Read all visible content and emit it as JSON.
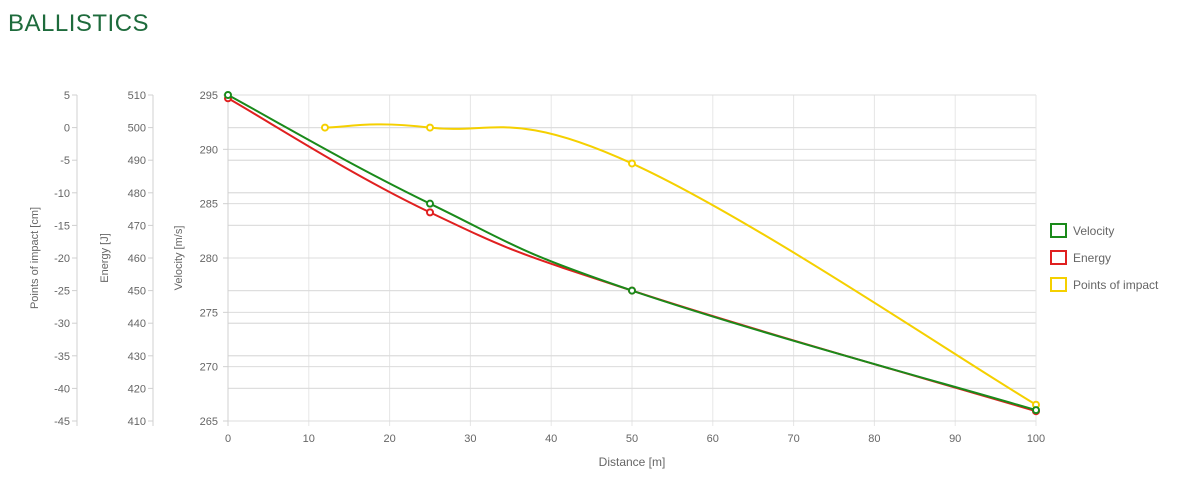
{
  "page": {
    "title": "BALLISTICS",
    "title_color": "#1e6b3c"
  },
  "chart_data": {
    "type": "line",
    "xlabel": "Distance [m]",
    "xlim": [
      0,
      100
    ],
    "xticks": [
      0,
      10,
      20,
      30,
      40,
      50,
      60,
      70,
      80,
      90,
      100
    ],
    "grid": true,
    "legend_position": "right",
    "axes": [
      {
        "id": "poi",
        "label": "Points of impact [cm]",
        "ylim": [
          -45,
          5
        ],
        "ticks": [
          5,
          0,
          -5,
          -10,
          -15,
          -20,
          -25,
          -30,
          -35,
          -40,
          -45
        ]
      },
      {
        "id": "energy",
        "label": "Energy [J]",
        "ylim": [
          410,
          510
        ],
        "ticks": [
          510,
          500,
          490,
          480,
          470,
          460,
          450,
          440,
          430,
          420,
          410
        ]
      },
      {
        "id": "velocity",
        "label": "Velocity [m/s]",
        "ylim": [
          265,
          295
        ],
        "ticks": [
          295,
          290,
          285,
          280,
          275,
          270,
          265
        ]
      }
    ],
    "series": [
      {
        "name": "Velocity",
        "axis": "velocity",
        "color": "#1a8a1a",
        "x": [
          0,
          25,
          50,
          100
        ],
        "y": [
          295,
          285,
          277,
          266
        ]
      },
      {
        "name": "Energy",
        "axis": "energy",
        "color": "#e02020",
        "x": [
          0,
          25,
          50,
          100
        ],
        "y": [
          509,
          474,
          450,
          413
        ]
      },
      {
        "name": "Points of impact",
        "axis": "poi",
        "color": "#f5d000",
        "x": [
          12,
          25,
          50,
          100
        ],
        "y": [
          0,
          0,
          -5.5,
          -42.5
        ]
      }
    ]
  }
}
